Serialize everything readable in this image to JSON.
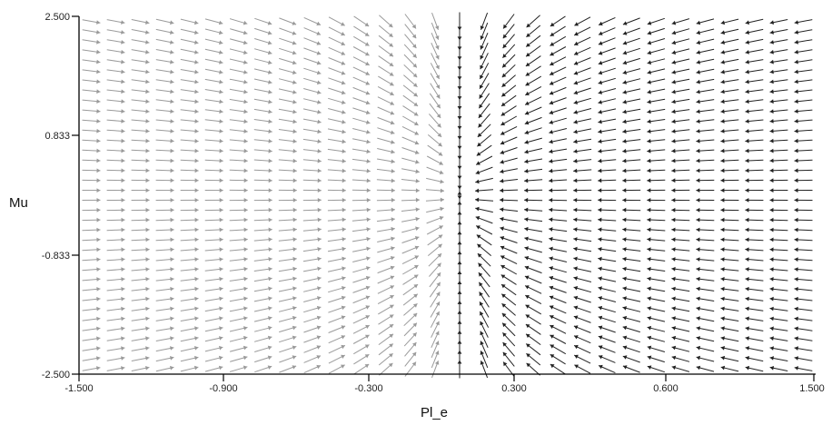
{
  "chart_data": {
    "type": "vector-field",
    "xlabel": "Pl_e",
    "ylabel": "Mu",
    "xlim": [
      -1.5,
      1.5
    ],
    "ylim": [
      -2.5,
      2.5
    ],
    "x_ticks": [
      "-1.500",
      "-0.900",
      "-0.300",
      "0.300",
      "0.600",
      "1.500"
    ],
    "y_ticks": [
      "2.500",
      "0.833",
      "-0.833",
      "-2.500"
    ],
    "grid": false,
    "legend": "none",
    "field": {
      "columns": 30,
      "rows": 36,
      "equilibrium": {
        "x": 0.05,
        "y": 0.0
      },
      "x_range": [
        -1.5,
        1.5
      ],
      "y_range": [
        -2.5,
        2.5
      ],
      "description_vectors": [
        {
          "region": "upper-left",
          "direction": "down-right"
        },
        {
          "region": "lower-left",
          "direction": "right / up-right"
        },
        {
          "region": "upper-right",
          "direction": "left"
        },
        {
          "region": "lower-right",
          "direction": "up-left"
        }
      ]
    },
    "colors": {
      "left_arrows": "#9a9a9a",
      "right_arrows": "#222222",
      "axis": "#000000"
    }
  }
}
